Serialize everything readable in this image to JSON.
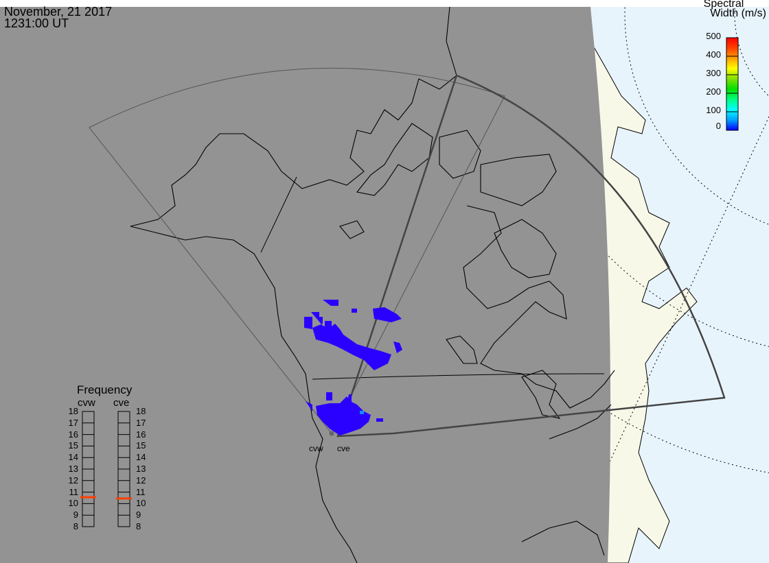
{
  "header": {
    "date": "November, 21 2017",
    "time": "1231:00 UT"
  },
  "colorbar": {
    "title_line1": "Spectral",
    "title_line2": "Width (m/s)",
    "ticks": [
      "500",
      "400",
      "300",
      "200",
      "100",
      "0"
    ],
    "range": [
      0,
      500
    ],
    "colors": [
      "#0000ff",
      "#00a0ff",
      "#00ffff",
      "#00ff80",
      "#00e000",
      "#80e000",
      "#ffff00",
      "#ffa000",
      "#ff4000",
      "#ff0000"
    ]
  },
  "frequency": {
    "title": "Frequency",
    "ticks": [
      "18",
      "17",
      "16",
      "15",
      "14",
      "13",
      "12",
      "11",
      "10",
      "9",
      "8"
    ],
    "range_mhz": [
      8,
      18
    ],
    "radars": [
      {
        "label": "cvw",
        "value_mhz": 10.55
      },
      {
        "label": "cve",
        "value_mhz": 10.45
      }
    ],
    "marker_color": "#ff4000"
  },
  "radars": {
    "west": "cvw",
    "east": "cve"
  },
  "colors": {
    "night": "#939393",
    "ocean": "#e8f4fc",
    "land": "#f8f8e8",
    "scatter": "#2a00ff"
  }
}
